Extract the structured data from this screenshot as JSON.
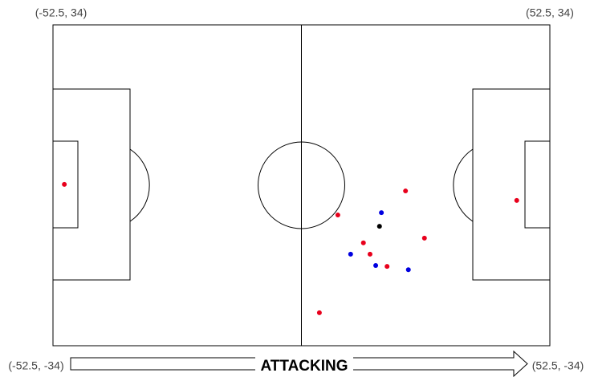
{
  "chart_data": {
    "type": "scatter",
    "xlim": [
      -52.5,
      52.5
    ],
    "ylim": [
      -34,
      34
    ],
    "corner_labels": {
      "top_left": "(-52.5, 34)",
      "top_right": "(52.5, 34)",
      "bottom_left": "(-52.5, -34)",
      "bottom_right": "(52.5, -34)"
    },
    "annotation": "ATTACKING",
    "series": [
      {
        "color": "#e8001c",
        "x": [
          -50.1,
          22.0,
          7.7,
          26.0,
          13.1,
          14.5,
          18.1,
          3.8,
          45.5
        ],
        "y": [
          0.2,
          -1.2,
          -6.3,
          -11.2,
          -12.2,
          -14.6,
          -17.2,
          -27.0,
          -3.2
        ]
      },
      {
        "color": "#0000e0",
        "x": [
          16.9,
          10.4,
          15.7,
          22.6
        ],
        "y": [
          -5.8,
          -14.6,
          -17.0,
          -17.9
        ]
      },
      {
        "color": "#000000",
        "x": [
          16.5
        ],
        "y": [
          -8.7
        ]
      }
    ]
  }
}
